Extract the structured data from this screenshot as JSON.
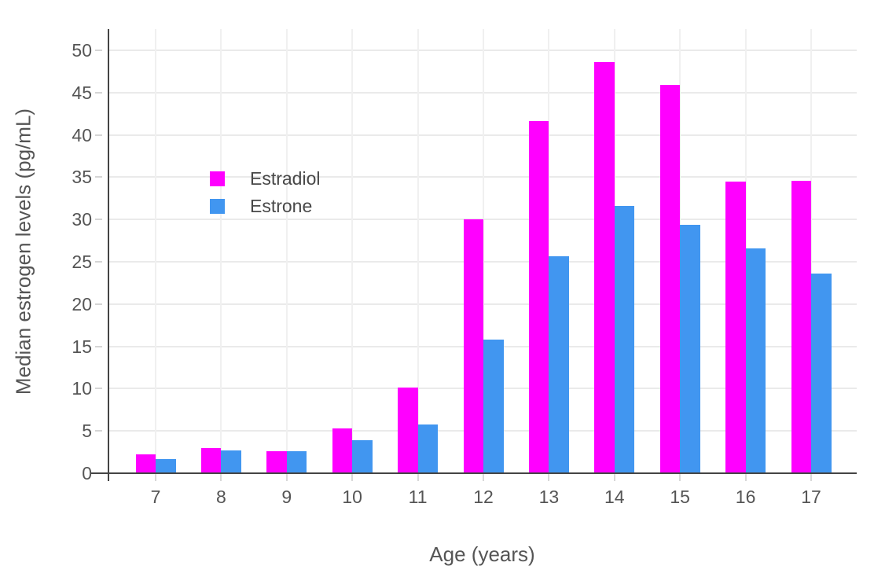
{
  "chart_data": {
    "type": "bar",
    "title": "",
    "xlabel": "Age (years)",
    "ylabel": "Median estrogen levels (pg/mL)",
    "categories": [
      "7",
      "8",
      "9",
      "10",
      "11",
      "12",
      "13",
      "14",
      "15",
      "16",
      "17"
    ],
    "series": [
      {
        "name": "Estradiol",
        "color": "#FF00FF",
        "values": [
          2.2,
          3.0,
          2.6,
          5.3,
          10.1,
          30.0,
          41.6,
          48.6,
          45.9,
          34.5,
          34.6
        ]
      },
      {
        "name": "Estrone",
        "color": "#4196F0",
        "values": [
          1.7,
          2.7,
          2.6,
          3.9,
          5.8,
          15.8,
          25.6,
          31.6,
          29.4,
          26.6,
          23.6
        ]
      }
    ],
    "yticks": [
      0,
      5,
      10,
      15,
      20,
      25,
      30,
      35,
      40,
      45,
      50
    ],
    "ylim": [
      0,
      52.5
    ],
    "grid": true,
    "legend_position": "inside upper-left of plot",
    "colors": {
      "axis_line": "#444444",
      "gridline": "#eaeaea",
      "tick_text": "#555555",
      "legend_text": "#484848",
      "background": "#ffffff"
    }
  }
}
